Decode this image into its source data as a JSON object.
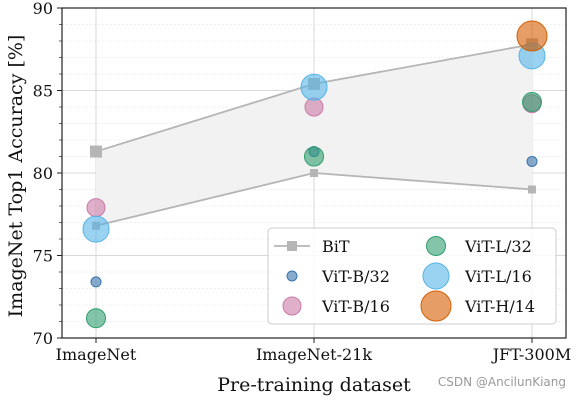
{
  "chart_data": {
    "type": "scatter",
    "title": "",
    "xlabel": "Pre-training dataset",
    "ylabel": "ImageNet Top1 Accuracy [%]",
    "categories": [
      "ImageNet",
      "ImageNet-21k",
      "JFT-300M"
    ],
    "ylim": [
      70,
      90
    ],
    "yticks": [
      70,
      75,
      80,
      85,
      90
    ],
    "grid": true,
    "legend_position": "bottom-right",
    "bit_band": {
      "name": "BiT",
      "upper": [
        81.3,
        85.4,
        87.8
      ],
      "lower": [
        76.8,
        80.0,
        79.0
      ],
      "color": "#b5b5b5",
      "fill": "#f2f2f2"
    },
    "series": [
      {
        "name": "ViT-B/32",
        "color": "#3a74ad",
        "values": [
          73.4,
          81.3,
          80.7
        ]
      },
      {
        "name": "ViT-B/16",
        "color": "#cc79a7",
        "values": [
          77.9,
          84.0,
          84.2
        ]
      },
      {
        "name": "ViT-L/32",
        "color": "#2f9e6e",
        "values": [
          71.2,
          81.0,
          84.3
        ]
      },
      {
        "name": "ViT-L/16",
        "color": "#56b4e9",
        "values": [
          76.6,
          85.2,
          87.1
        ]
      },
      {
        "name": "ViT-H/14",
        "color": "#d55e00",
        "values": [
          null,
          null,
          88.3
        ]
      }
    ]
  },
  "watermark": "CSDN @AncilunKiang"
}
